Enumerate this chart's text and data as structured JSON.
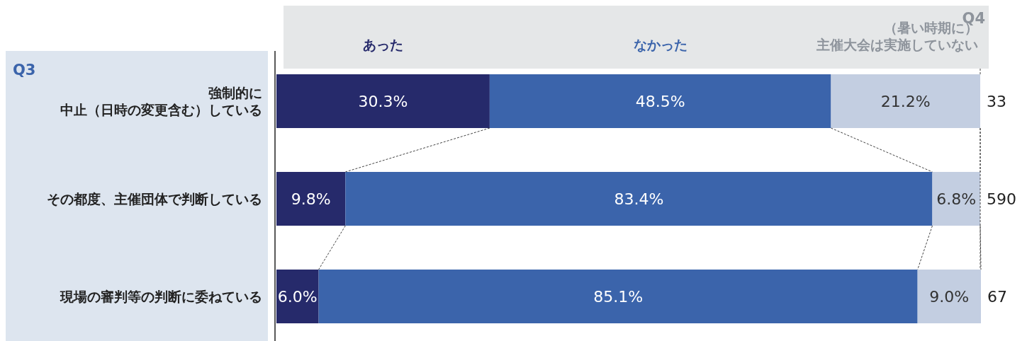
{
  "chart_data": {
    "type": "bar",
    "orientation": "horizontal",
    "stacked": true,
    "legend": "top",
    "tick_labels": "y",
    "xlim": [
      0,
      100
    ],
    "categories": [
      "強制的に中止（日時の変更含む）している",
      "その都度、主催団体で判断している",
      "現場の審判等の判断に委ねている"
    ],
    "series": [
      {
        "name": "あった",
        "color": "#262a6b",
        "values": [
          30.3,
          9.8,
          6.0
        ],
        "value_labels": [
          "30.3%",
          "9.8%",
          "6.0%"
        ]
      },
      {
        "name": "なかった",
        "color": "#3b64ab",
        "values": [
          48.5,
          83.4,
          85.1
        ],
        "value_labels": [
          "48.5%",
          "83.4%",
          "85.1%"
        ]
      },
      {
        "name": "（暑い時期に）主催大会は実施していない",
        "color": "#c3cee1",
        "values": [
          21.2,
          6.8,
          9.0
        ],
        "value_labels": [
          "21.2%",
          "6.8%",
          "9.0%"
        ]
      }
    ],
    "annotations": [
      "Q3",
      "Q4",
      "33",
      "590",
      "67"
    ]
  }
}
